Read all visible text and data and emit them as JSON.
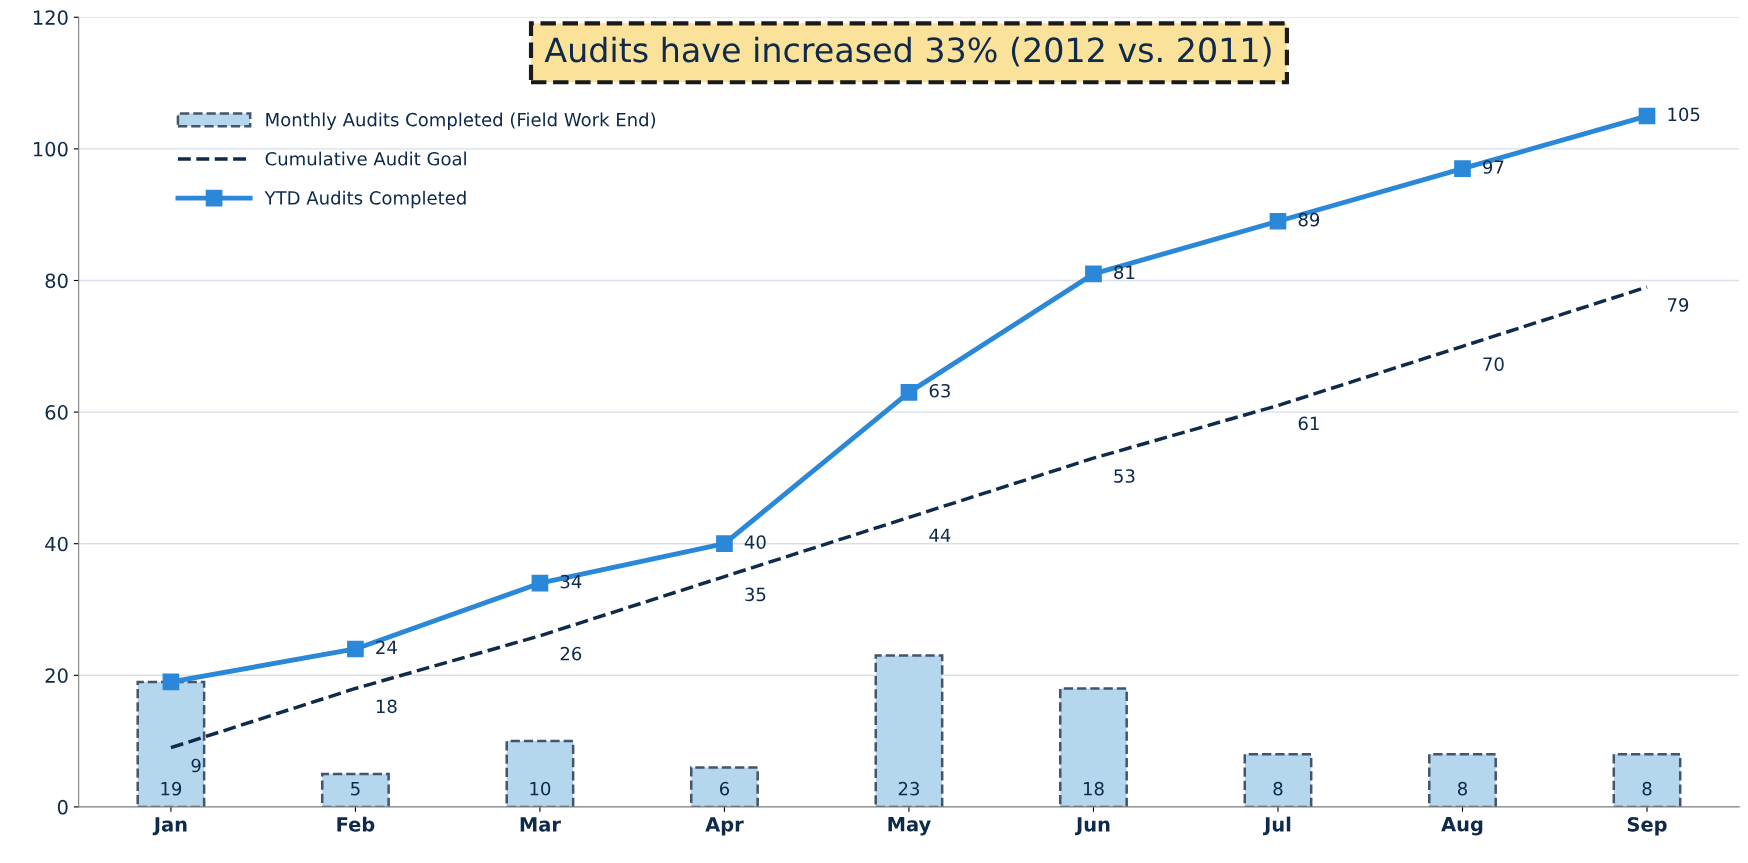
{
  "chart_data": {
    "type": "bar",
    "categories": [
      "Jan",
      "Feb",
      "Mar",
      "Apr",
      "May",
      "Jun",
      "Jul",
      "Aug",
      "Sep"
    ],
    "series": [
      {
        "name": "Monthly Audits Completed (Field Work End)",
        "color": "#b4d7ee",
        "values": [
          19,
          5,
          10,
          6,
          23,
          18,
          8,
          8,
          8
        ]
      },
      {
        "name": "Cumulative Audit Goal",
        "type": "line",
        "color": "#0f2a4a",
        "line_style": "dashed",
        "marker": "none",
        "values": [
          9,
          18,
          26,
          35,
          44,
          53,
          61,
          70,
          79
        ]
      },
      {
        "name": "YTD Audits Completed",
        "type": "line",
        "color": "#2b88d8",
        "line_style": "solid",
        "marker": "square",
        "values": [
          19,
          24,
          34,
          40,
          63,
          81,
          89,
          97,
          105
        ],
        "value_labels": [
          null,
          "24",
          "34",
          "40",
          "63",
          "81",
          "89",
          "97",
          "105"
        ]
      }
    ],
    "annotations": [
      "Audits have increased 33% (2012 vs. 2011)"
    ],
    "ylim": [
      0,
      120
    ],
    "yticks": [
      0,
      20,
      40,
      60,
      80,
      100,
      120
    ],
    "grid": "y",
    "legend": "top left",
    "data_labels": true
  }
}
